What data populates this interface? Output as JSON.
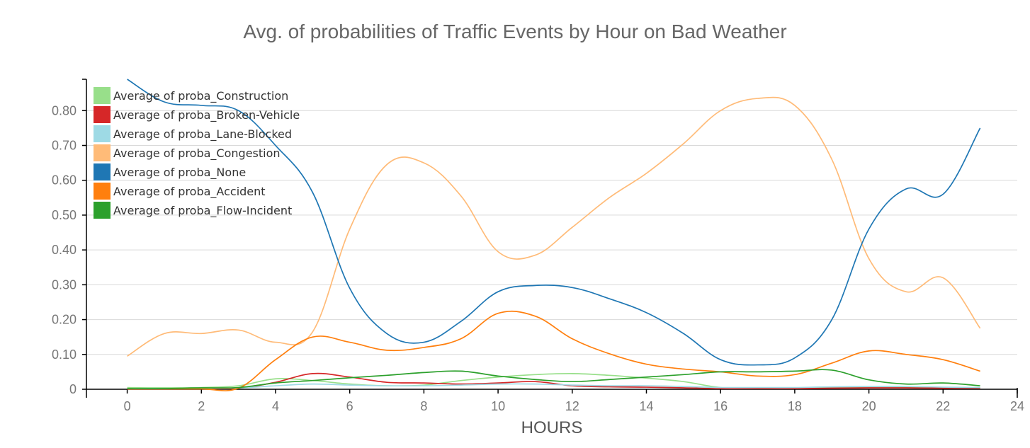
{
  "chart_data": {
    "type": "line",
    "title": "Avg. of probabilities of Traffic Events by Hour on Bad Weather",
    "xlabel": "HOURS",
    "ylabel": "",
    "xlim": [
      -1.1,
      24
    ],
    "ylim": [
      0,
      0.89
    ],
    "x_ticks": [
      0,
      2,
      4,
      6,
      8,
      10,
      12,
      14,
      16,
      18,
      20,
      22,
      24
    ],
    "y_ticks": [
      0,
      0.1,
      0.2,
      0.3,
      0.4,
      0.5,
      0.6,
      0.7,
      0.8
    ],
    "y_tick_labels": [
      "0",
      "0.10",
      "0.20",
      "0.30",
      "0.40",
      "0.50",
      "0.60",
      "0.70",
      "0.80"
    ],
    "grid": true,
    "legend_position": "top-left",
    "x": [
      0,
      1,
      2,
      3,
      4,
      5,
      6,
      7,
      8,
      9,
      10,
      11,
      12,
      13,
      14,
      15,
      16,
      17,
      18,
      19,
      20,
      21,
      22,
      23
    ],
    "series": [
      {
        "name": "Average of proba_Construction",
        "color": "#98df8a",
        "values": [
          0.005,
          0.004,
          0.005,
          0.01,
          0.03,
          0.025,
          0.015,
          0.01,
          0.012,
          0.025,
          0.035,
          0.042,
          0.045,
          0.04,
          0.032,
          0.022,
          0.005,
          0.003,
          0.003,
          0.004,
          0.005,
          0.005,
          0.004,
          0.004
        ]
      },
      {
        "name": "Average of proba_Broken-Vehicle",
        "color": "#d62728",
        "values": [
          0.001,
          0.001,
          0.002,
          0.003,
          0.02,
          0.045,
          0.035,
          0.02,
          0.018,
          0.015,
          0.018,
          0.022,
          0.01,
          0.007,
          0.006,
          0.004,
          0.002,
          0.002,
          0.002,
          0.003,
          0.004,
          0.004,
          0.003,
          0.003
        ]
      },
      {
        "name": "Average of proba_Lane-Blocked",
        "color": "#9edae5",
        "values": [
          0.002,
          0.002,
          0.003,
          0.004,
          0.01,
          0.015,
          0.012,
          0.01,
          0.01,
          0.012,
          0.015,
          0.015,
          0.012,
          0.01,
          0.01,
          0.008,
          0.005,
          0.005,
          0.005,
          0.007,
          0.008,
          0.008,
          0.006,
          0.005
        ]
      },
      {
        "name": "Average of proba_Congestion",
        "color": "#ffbb78",
        "values": [
          0.095,
          0.16,
          0.16,
          0.17,
          0.135,
          0.165,
          0.46,
          0.645,
          0.65,
          0.555,
          0.395,
          0.385,
          0.465,
          0.55,
          0.62,
          0.705,
          0.8,
          0.835,
          0.815,
          0.66,
          0.375,
          0.28,
          0.32,
          0.175
        ]
      },
      {
        "name": "Average of proba_None",
        "color": "#1f77b4",
        "values": [
          0.89,
          0.825,
          0.815,
          0.8,
          0.7,
          0.565,
          0.29,
          0.16,
          0.135,
          0.195,
          0.28,
          0.298,
          0.292,
          0.26,
          0.22,
          0.16,
          0.085,
          0.07,
          0.09,
          0.2,
          0.46,
          0.575,
          0.56,
          0.75
        ]
      },
      {
        "name": "Average of proba_Accident",
        "color": "#ff7f0e",
        "values": [
          0.001,
          0.001,
          0.001,
          0.003,
          0.085,
          0.15,
          0.135,
          0.112,
          0.12,
          0.145,
          0.218,
          0.21,
          0.145,
          0.102,
          0.072,
          0.058,
          0.05,
          0.038,
          0.042,
          0.075,
          0.11,
          0.1,
          0.085,
          0.052
        ]
      },
      {
        "name": "Average of proba_Flow-Incident",
        "color": "#2ca02c",
        "values": [
          0.002,
          0.002,
          0.004,
          0.005,
          0.018,
          0.025,
          0.033,
          0.04,
          0.048,
          0.052,
          0.038,
          0.028,
          0.022,
          0.028,
          0.035,
          0.042,
          0.05,
          0.05,
          0.052,
          0.055,
          0.027,
          0.015,
          0.018,
          0.01
        ]
      }
    ]
  }
}
